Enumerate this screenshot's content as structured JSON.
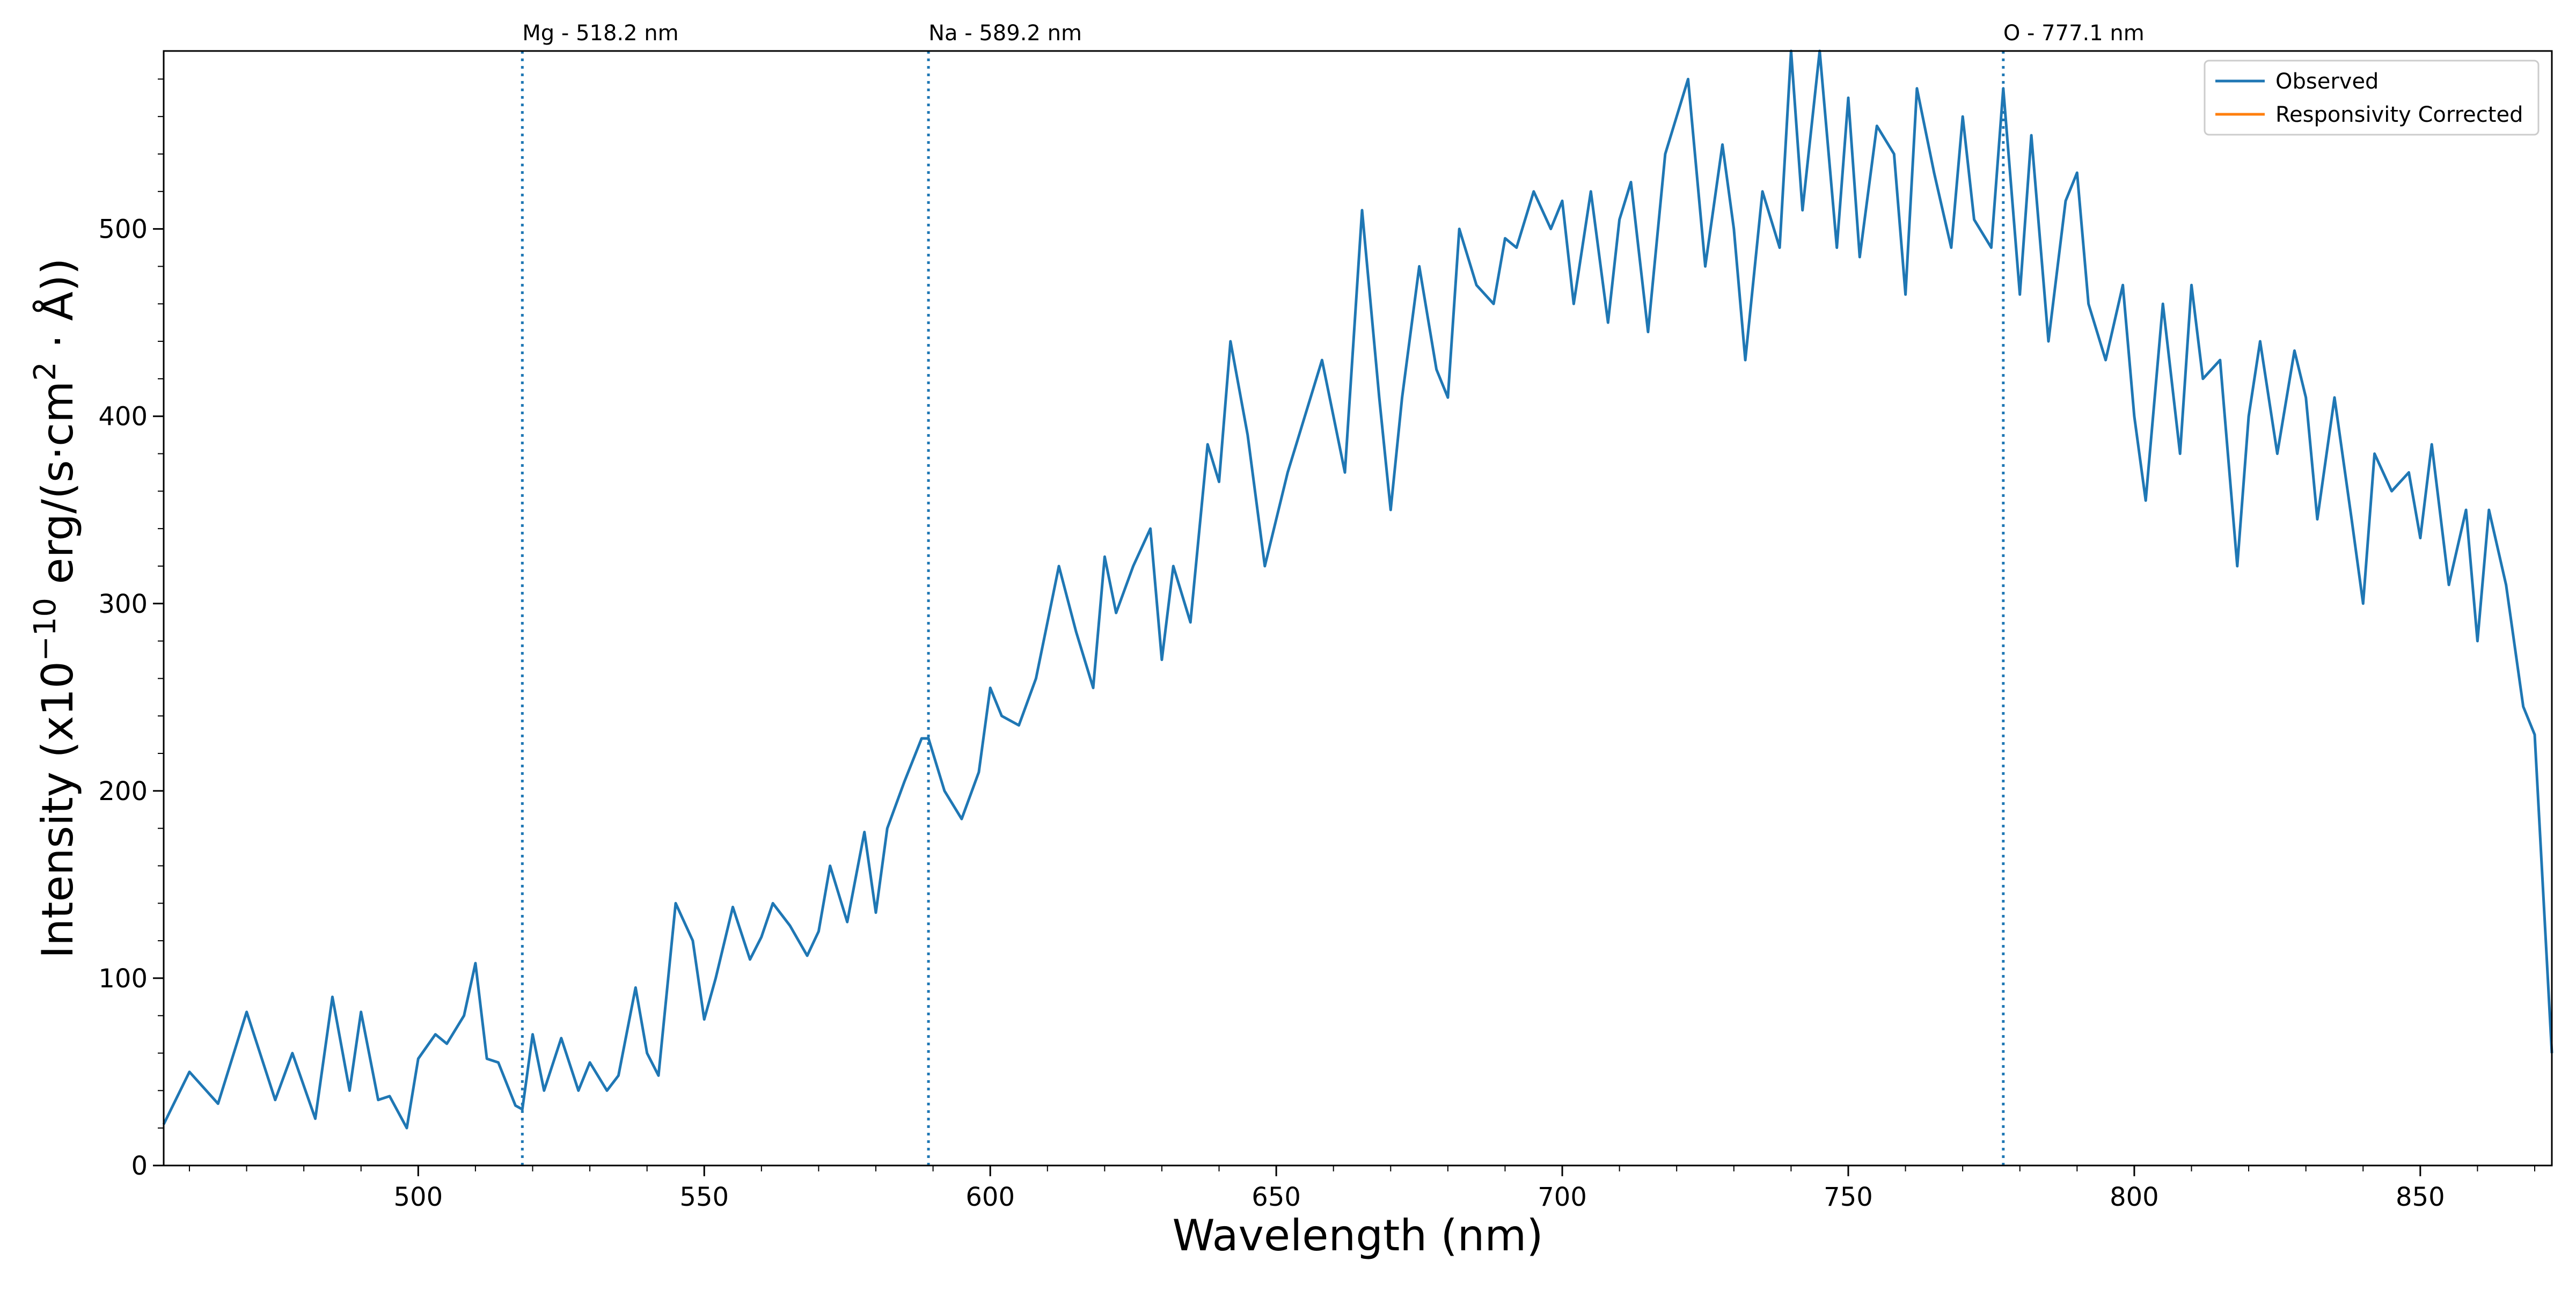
{
  "chart_data": {
    "type": "line",
    "xlabel": "Wavelength (nm)",
    "ylabel": {
      "prefix": "Intensity (x10",
      "exponent": "−10",
      "middle": " erg/(s·cm",
      "squared": "2",
      "suffix": " · Å))"
    },
    "xlim": [
      455.5,
      873
    ],
    "ylim": [
      0,
      595
    ],
    "xticks": [
      500,
      550,
      600,
      650,
      700,
      750,
      800,
      850
    ],
    "yticks": [
      0,
      100,
      200,
      300,
      400,
      500
    ],
    "grid": false,
    "legend_position": "top-right",
    "legend": [
      "Observed",
      "Responsivity Corrected"
    ],
    "colors": {
      "observed": "#1f77b4",
      "responsivity_corrected": "#ff7f0e",
      "reference_lines": "#1f77b4"
    },
    "reference_lines": [
      {
        "x": 518.2,
        "label": "Mg - 518.2 nm"
      },
      {
        "x": 589.2,
        "label": "Na - 589.2 nm"
      },
      {
        "x": 777.1,
        "label": "O - 777.1 nm"
      }
    ],
    "series": [
      {
        "name": "Observed",
        "x": [
          455.5,
          460,
          465,
          470,
          475,
          478,
          482,
          485,
          488,
          490,
          493,
          495,
          498,
          500,
          503,
          505,
          508,
          510,
          512,
          514,
          517,
          518.2,
          520,
          522,
          525,
          528,
          530,
          533,
          535,
          538,
          540,
          542,
          545,
          548,
          550,
          552,
          555,
          558,
          560,
          562,
          565,
          568,
          570,
          572,
          575,
          578,
          580,
          582,
          585,
          588,
          589.2,
          592,
          595,
          598,
          600,
          602,
          605,
          608,
          610,
          612,
          615,
          618,
          620,
          622,
          625,
          628,
          630,
          632,
          635,
          638,
          640,
          642,
          645,
          648,
          650,
          652,
          655,
          658,
          660,
          662,
          665,
          668,
          670,
          672,
          675,
          678,
          680,
          682,
          685,
          688,
          690,
          692,
          695,
          698,
          700,
          702,
          705,
          708,
          710,
          712,
          715,
          718,
          720,
          722,
          725,
          728,
          730,
          732,
          735,
          738,
          740,
          742,
          745,
          748,
          750,
          752,
          755,
          758,
          760,
          762,
          765,
          768,
          770,
          772,
          775,
          777.1,
          780,
          782,
          785,
          788,
          790,
          792,
          795,
          798,
          800,
          802,
          805,
          808,
          810,
          812,
          815,
          818,
          820,
          822,
          825,
          828,
          830,
          832,
          835,
          838,
          840,
          842,
          845,
          848,
          850,
          852,
          855,
          858,
          860,
          862,
          865,
          868,
          870,
          873
        ],
        "values": [
          22,
          50,
          33,
          82,
          35,
          60,
          25,
          90,
          40,
          82,
          35,
          37,
          20,
          57,
          70,
          65,
          80,
          108,
          57,
          55,
          32,
          30,
          70,
          40,
          68,
          40,
          55,
          40,
          48,
          95,
          60,
          48,
          140,
          120,
          78,
          100,
          138,
          110,
          122,
          140,
          128,
          112,
          125,
          160,
          130,
          178,
          135,
          180,
          205,
          228,
          228,
          200,
          185,
          210,
          255,
          240,
          235,
          260,
          290,
          320,
          285,
          255,
          325,
          295,
          320,
          340,
          270,
          320,
          290,
          385,
          365,
          440,
          390,
          320,
          345,
          370,
          400,
          430,
          400,
          370,
          510,
          410,
          350,
          410,
          480,
          425,
          410,
          500,
          470,
          460,
          495,
          490,
          520,
          500,
          515,
          460,
          520,
          450,
          505,
          525,
          445,
          540,
          560,
          580,
          480,
          545,
          500,
          430,
          520,
          490,
          595,
          510,
          595,
          490,
          570,
          485,
          555,
          540,
          465,
          575,
          530,
          490,
          560,
          505,
          490,
          575,
          465,
          550,
          440,
          515,
          530,
          460,
          430,
          470,
          400,
          355,
          460,
          380,
          470,
          420,
          430,
          320,
          400,
          440,
          380,
          435,
          410,
          345,
          410,
          345,
          300,
          380,
          360,
          370,
          335,
          385,
          310,
          350,
          280,
          350,
          310,
          245,
          230,
          60
        ],
        "smoothed": false
      },
      {
        "name": "Responsivity Corrected",
        "x": [],
        "values": []
      }
    ]
  }
}
